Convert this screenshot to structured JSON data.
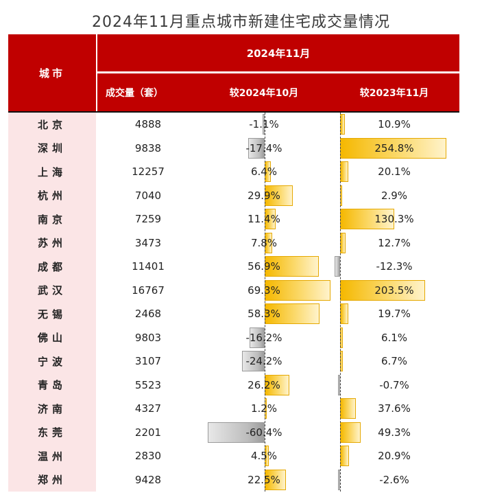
{
  "title": "2024年11月重点城市新建住宅成交量情况",
  "header": {
    "city": "城市",
    "month": "2024年11月",
    "col_volume": "成交量（套）",
    "col_mom": "较2024年10月",
    "col_yoy": "较2023年11月"
  },
  "colors": {
    "header_red": "#c00000",
    "city_bg": "#fbe5e6",
    "positive_bar": "#f5b800",
    "negative_bar": "#bdbdbd"
  },
  "chart_data": {
    "type": "table",
    "title": "2024年11月重点城市新建住宅成交量情况",
    "columns": [
      "城市",
      "成交量（套）",
      "较2024年10月",
      "较2023年11月"
    ],
    "rows": [
      {
        "city": "北京",
        "volume": "4888",
        "mom": -1.1,
        "mom_label": "-1.1%",
        "yoy": 10.9,
        "yoy_label": "10.9%"
      },
      {
        "city": "深圳",
        "volume": "9838",
        "mom": -17.4,
        "mom_label": "-17.4%",
        "yoy": 254.8,
        "yoy_label": "254.8%"
      },
      {
        "city": "上海",
        "volume": "12257",
        "mom": 6.4,
        "mom_label": "6.4%",
        "yoy": 20.1,
        "yoy_label": "20.1%"
      },
      {
        "city": "杭州",
        "volume": "7040",
        "mom": 29.9,
        "mom_label": "29.9%",
        "yoy": 2.9,
        "yoy_label": "2.9%"
      },
      {
        "city": "南京",
        "volume": "7259",
        "mom": 11.4,
        "mom_label": "11.4%",
        "yoy": 130.3,
        "yoy_label": "130.3%"
      },
      {
        "city": "苏州",
        "volume": "3473",
        "mom": 7.8,
        "mom_label": "7.8%",
        "yoy": 12.7,
        "yoy_label": "12.7%"
      },
      {
        "city": "成都",
        "volume": "11401",
        "mom": 56.9,
        "mom_label": "56.9%",
        "yoy": -12.3,
        "yoy_label": "-12.3%"
      },
      {
        "city": "武汉",
        "volume": "16767",
        "mom": 69.3,
        "mom_label": "69.3%",
        "yoy": 203.5,
        "yoy_label": "203.5%"
      },
      {
        "city": "无锡",
        "volume": "2468",
        "mom": 58.3,
        "mom_label": "58.3%",
        "yoy": 19.7,
        "yoy_label": "19.7%"
      },
      {
        "city": "佛山",
        "volume": "9803",
        "mom": -16.2,
        "mom_label": "-16.2%",
        "yoy": 6.1,
        "yoy_label": "6.1%"
      },
      {
        "city": "宁波",
        "volume": "3107",
        "mom": -24.2,
        "mom_label": "-24.2%",
        "yoy": 6.7,
        "yoy_label": "6.7%"
      },
      {
        "city": "青岛",
        "volume": "5523",
        "mom": 26.2,
        "mom_label": "26.2%",
        "yoy": -0.7,
        "yoy_label": "-0.7%"
      },
      {
        "city": "济南",
        "volume": "4327",
        "mom": 1.2,
        "mom_label": "1.2%",
        "yoy": 37.6,
        "yoy_label": "37.6%"
      },
      {
        "city": "东莞",
        "volume": "2201",
        "mom": -60.4,
        "mom_label": "-60.4%",
        "yoy": 49.3,
        "yoy_label": "49.3%"
      },
      {
        "city": "温州",
        "volume": "2830",
        "mom": 4.5,
        "mom_label": "4.5%",
        "yoy": 20.9,
        "yoy_label": "20.9%"
      },
      {
        "city": "郑州",
        "volume": "9428",
        "mom": 22.5,
        "mom_label": "22.5%",
        "yoy": -2.6,
        "yoy_label": "-2.6%"
      }
    ]
  }
}
